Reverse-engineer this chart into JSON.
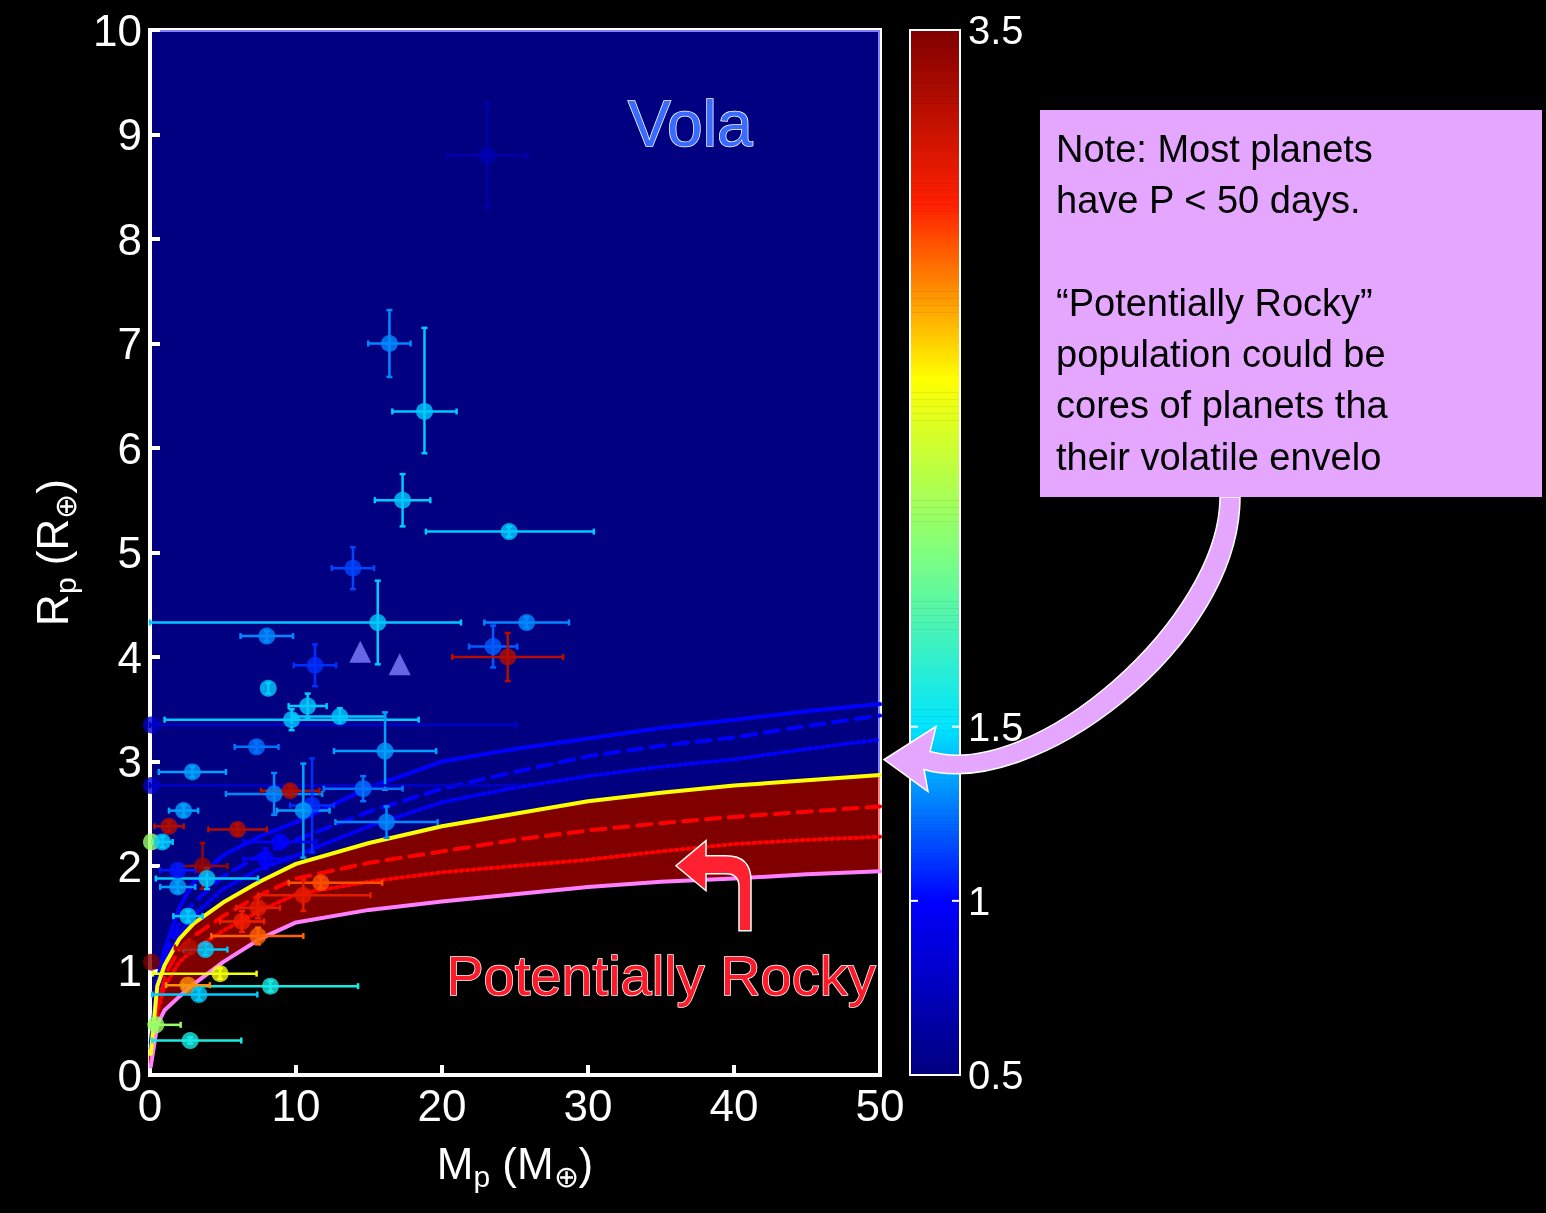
{
  "chart_data": {
    "type": "scatter",
    "xlabel": "M$_{p}$ (M$_{⊕}$)",
    "ylabel": "R$_{p}$ (R$_{⊕}$)",
    "xlim": [
      0,
      50
    ],
    "ylim": [
      0,
      10
    ],
    "xticks": [
      0,
      10,
      20,
      30,
      40,
      50
    ],
    "yticks": [
      0,
      1,
      2,
      3,
      4,
      5,
      6,
      7,
      8,
      9,
      10
    ],
    "clim": [
      0.5,
      3.5
    ],
    "cticks": [
      0.5,
      1,
      1.5,
      3.5
    ],
    "grid": false,
    "annotations": [
      "Vola",
      "Potentially Rocky",
      "Note: Most planets\nhave P < 50 days.\n\n“Potentially Rocky”\npopulation could be\ncores of planets tha\ntheir volatile envelo"
    ],
    "series": [
      {
        "type": "line",
        "color": "#0000ff",
        "line_style": "solid",
        "x": [
          0.05,
          0.5,
          1,
          2,
          3,
          5,
          7.5,
          10,
          15,
          20,
          25,
          30,
          35,
          40,
          45,
          50
        ],
        "values": [
          0.3,
          0.9,
          1.2,
          1.6,
          1.85,
          2.1,
          2.28,
          2.42,
          2.75,
          3.0,
          3.12,
          3.22,
          3.32,
          3.4,
          3.48,
          3.55
        ],
        "lower": [
          0.2,
          0.85,
          1.05,
          1.3,
          1.45,
          1.65,
          1.85,
          2.02,
          2.22,
          2.38,
          2.5,
          2.62,
          2.7,
          2.77,
          2.82,
          2.87
        ],
        "upper": [
          10,
          10,
          10,
          10,
          10,
          10,
          10,
          10,
          10,
          10,
          10,
          10,
          10,
          10,
          10,
          10
        ]
      },
      {
        "type": "line",
        "color": "#ff0000",
        "line_style": "dashed",
        "x": [
          0.05,
          0.5,
          1,
          2,
          3,
          5,
          7.5,
          10,
          15,
          20,
          25,
          30,
          35,
          40,
          45,
          50
        ],
        "values": [
          0.15,
          0.7,
          0.95,
          1.2,
          1.33,
          1.52,
          1.72,
          1.88,
          2.03,
          2.14,
          2.25,
          2.34,
          2.41,
          2.47,
          2.52,
          2.57
        ],
        "lower": [
          0.08,
          0.48,
          0.62,
          0.75,
          0.87,
          1.08,
          1.3,
          1.46,
          1.58,
          1.66,
          1.73,
          1.8,
          1.85,
          1.88,
          1.92,
          1.95
        ],
        "upper": [
          0.2,
          0.85,
          1.05,
          1.3,
          1.45,
          1.65,
          1.85,
          2.02,
          2.22,
          2.38,
          2.5,
          2.62,
          2.7,
          2.77,
          2.82,
          2.87
        ]
      },
      {
        "type": "line",
        "color": "#ff0000",
        "line_style": "dotted",
        "x": [
          0.05,
          0.5,
          1,
          2,
          3,
          5,
          7.5,
          10,
          15,
          20,
          25,
          30,
          35,
          40,
          45,
          50
        ],
        "values": [
          0.12,
          0.6,
          0.85,
          1.08,
          1.2,
          1.38,
          1.57,
          1.73,
          1.85,
          1.94,
          2.0,
          2.06,
          2.14,
          2.21,
          2.25,
          2.28
        ]
      },
      {
        "type": "line",
        "color": "#ff80ff",
        "line_style": "solid",
        "x": [
          0.05,
          0.5,
          1,
          2,
          3,
          5,
          7.5,
          10,
          15,
          20,
          25,
          30,
          35,
          40,
          45,
          50
        ],
        "values": [
          0.08,
          0.48,
          0.62,
          0.75,
          0.87,
          1.08,
          1.3,
          1.46,
          1.58,
          1.66,
          1.73,
          1.8,
          1.85,
          1.88,
          1.92,
          1.95
        ]
      },
      {
        "type": "line",
        "color": "#0000ff",
        "line_style": "dashed",
        "x": [
          0.05,
          0.5,
          1,
          2,
          3,
          5,
          7.5,
          10,
          15,
          20,
          25,
          30,
          35,
          40,
          45,
          50
        ],
        "values": [
          0.25,
          0.85,
          1.12,
          1.45,
          1.65,
          1.9,
          2.1,
          2.25,
          2.52,
          2.74,
          2.9,
          3.05,
          3.15,
          3.23,
          3.34,
          3.44
        ]
      },
      {
        "type": "line",
        "color": "#0000ff",
        "line_style": "dotted",
        "x": [
          0.5,
          1,
          2,
          3,
          5,
          7.5,
          10,
          15,
          20,
          25,
          30,
          35,
          40,
          45,
          50
        ],
        "values": [
          0.8,
          1.05,
          1.35,
          1.53,
          1.78,
          1.97,
          2.1,
          2.38,
          2.61,
          2.75,
          2.86,
          2.95,
          3.02,
          3.12,
          3.21
        ]
      },
      {
        "type": "line",
        "color": "#ffff00",
        "line_style": "solid",
        "x": [
          0.05,
          0.5,
          1,
          2,
          3,
          5,
          7.5,
          10,
          15,
          20,
          25,
          30,
          35,
          40,
          45,
          50
        ],
        "values": [
          0.2,
          0.85,
          1.05,
          1.3,
          1.45,
          1.65,
          1.85,
          2.02,
          2.22,
          2.38,
          2.5,
          2.62,
          2.7,
          2.77,
          2.82,
          2.87
        ]
      },
      {
        "marker": "triangle",
        "color": "#8080ff",
        "x": [
          14.4,
          17.1
        ],
        "values": [
          4.05,
          3.93
        ]
      },
      {
        "marker": "circle",
        "x": [
          23.1,
          16.4,
          18.8,
          17.3,
          24.6,
          13.9,
          15.6,
          25.8,
          23.5,
          24.5,
          8.0,
          11.3,
          8.1,
          10.8,
          9.7,
          13.0,
          0.1,
          7.3,
          16.1,
          2.9,
          0.1,
          14.6,
          8.5,
          9.6,
          11.1,
          10.5,
          2.3,
          16.2,
          6.0,
          1.3,
          0.1,
          0.85,
          8.9,
          3.6,
          1.9,
          7.9,
          3.9,
          1.9,
          11.7,
          10.5,
          7.4,
          6.3,
          7.4,
          2.6,
          3.8,
          2.7,
          0.1,
          4.8,
          8.25,
          2.6,
          3.35,
          0.4,
          2.75
        ],
        "values": [
          8.8,
          7.0,
          6.35,
          5.5,
          5.2,
          4.85,
          4.33,
          4.33,
          4.1,
          4.0,
          4.2,
          3.92,
          3.7,
          3.53,
          3.4,
          3.43,
          3.35,
          3.14,
          3.1,
          2.9,
          2.77,
          2.74,
          2.69,
          2.72,
          2.58,
          2.53,
          2.53,
          2.42,
          2.35,
          2.38,
          2.23,
          2.23,
          2.23,
          2.0,
          1.96,
          2.07,
          1.88,
          1.8,
          1.84,
          1.72,
          1.6,
          1.47,
          1.33,
          1.52,
          1.2,
          1.22,
          1.08,
          0.97,
          0.85,
          0.86,
          0.77,
          0.48,
          0.33
        ],
        "errors": [
          0.5,
          0.32,
          [
            5.95,
            7.15
          ],
          0.25,
          0.05,
          0.2,
          0.4,
          0.05,
          0.2,
          0.23,
          0.05,
          0.2,
          0.05,
          0.12,
          0.1,
          0.08,
          null,
          0.05,
          0.37,
          0.05,
          null,
          0.12,
          0.2,
          0.05,
          0.45,
          0.45,
          0.05,
          0.15,
          0.05,
          0.05,
          null,
          0.05,
          0.05,
          0.22,
          0.05,
          0.1,
          0.1,
          0.05,
          0.05,
          0.15,
          0.1,
          0.1,
          0.08,
          0.05,
          0.05,
          null,
          null,
          0.05,
          0.05,
          null,
          0.05,
          0.03,
          0.03
        ],
        "xerrors": [
          2.75,
          1.45,
          2.2,
          1.9,
          [
            18.9,
            30.4
          ],
          1.45,
          [
            0,
            21.3
          ],
          2.9,
          1.65,
          3.8,
          1.8,
          1.45,
          null,
          1.3,
          [
            1.0,
            18.4
          ],
          3.1,
          [
            0,
            25.1
          ],
          1.5,
          3.5,
          2.3,
          [
            0,
            25.1
          ],
          2.7,
          3.3,
          2.0,
          1.5,
          1.8,
          1.0,
          3.5,
          2.0,
          1.0,
          null,
          0.7,
          2.5,
          1.7,
          1.2,
          1.5,
          3.5,
          1.2,
          [
            9.5,
            15.9
          ],
          [
            7.4,
            15.1
          ],
          1.5,
          1.5,
          [
            4.2,
            10.5
          ],
          1.0,
          1.5,
          1.0,
          null,
          [
            0.2,
            7.3
          ],
          [
            2.25,
            14.25
          ],
          1.5,
          [
            0.15,
            7.35
          ],
          [
            0.05,
            2.1
          ],
          [
            0.15,
            6.25
          ]
        ],
        "colors": [
          "#0000b2",
          "#0089ff",
          "#00caff",
          "#00caff",
          "#00caff",
          "#0045ff",
          "#00caff",
          "#0089ff",
          "#005cff",
          "#b30d00",
          "#0089ff",
          "#002eff",
          "#00caff",
          "#00caff",
          "#00caff",
          "#00caff",
          "#0000cc",
          "#0073ff",
          "#00a0ff",
          "#00a0ff",
          "#0000cc",
          "#0073ff",
          "#0089ff",
          "#b30d00",
          "#002eff",
          "#00a0ff",
          "#00a0ff",
          "#0089ff",
          "#b30d00",
          "#b30d00",
          "#99ff66",
          "#00caff",
          "#0000ff",
          "#990600",
          "#0017ff",
          "#0000ff",
          "#00caff",
          "#00a0ff",
          "#ff4d00",
          "#e51a00",
          "#e51a00",
          "#f21d00",
          "#ff6300",
          "#00caff",
          "#00caff",
          "#b30d00",
          "#800000",
          "#f2ff0d",
          "#19eae5",
          "#ff9000",
          "#00caff",
          "#99ff66",
          "#19eae5"
        ],
        "cvalues": [
          0.7,
          1.3,
          1.44,
          1.44,
          1.44,
          1.15,
          1.44,
          1.3,
          1.2,
          3.3,
          1.3,
          1.1,
          1.44,
          1.44,
          1.44,
          1.44,
          0.8,
          1.25,
          1.35,
          1.35,
          0.8,
          1.25,
          1.3,
          3.3,
          1.1,
          1.35,
          1.35,
          1.3,
          3.3,
          3.3,
          2.1,
          1.44,
          1.0,
          3.4,
          1.05,
          1.0,
          1.44,
          1.35,
          2.9,
          3.1,
          3.1,
          3.05,
          2.85,
          1.44,
          1.44,
          3.3,
          3.5,
          2.45,
          1.6,
          2.75,
          1.44,
          2.1,
          1.6
        ]
      }
    ]
  }
}
